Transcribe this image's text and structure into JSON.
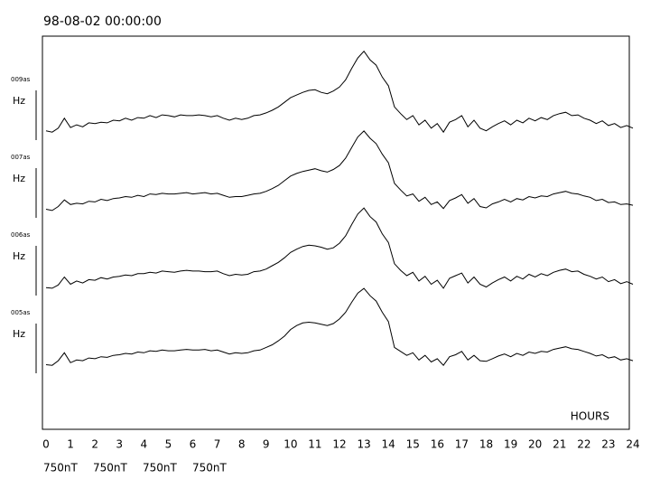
{
  "chart_data": {
    "type": "line",
    "title": "98-08-02 00:00:00",
    "x_label": "HOURS",
    "xlim": [
      0,
      24
    ],
    "xticks": [
      0,
      1,
      2,
      3,
      4,
      5,
      6,
      7,
      8,
      9,
      10,
      11,
      12,
      13,
      14,
      15,
      16,
      17,
      18,
      19,
      20,
      21,
      22,
      23,
      24
    ],
    "x": [
      0,
      0.25,
      0.5,
      0.75,
      1,
      1.25,
      1.5,
      1.75,
      2,
      2.25,
      2.5,
      2.75,
      3,
      3.25,
      3.5,
      3.75,
      4,
      4.25,
      4.5,
      4.75,
      5,
      5.25,
      5.5,
      5.75,
      6,
      6.25,
      6.5,
      6.75,
      7,
      7.25,
      7.5,
      7.75,
      8,
      8.25,
      8.5,
      8.75,
      9,
      9.25,
      9.5,
      9.75,
      10,
      10.25,
      10.5,
      10.75,
      11,
      11.25,
      11.5,
      11.75,
      12,
      12.25,
      12.5,
      12.75,
      13,
      13.25,
      13.5,
      13.75,
      14,
      14.25,
      14.5,
      14.75,
      15,
      15.25,
      15.5,
      15.75,
      16,
      16.25,
      16.5,
      16.75,
      17,
      17.25,
      17.5,
      17.75,
      18,
      18.25,
      18.5,
      18.75,
      19,
      19.25,
      19.5,
      19.75,
      20,
      20.25,
      20.5,
      20.75,
      21,
      21.25,
      21.5,
      21.75,
      22,
      22.25,
      22.5,
      22.75,
      23,
      23.25,
      23.5,
      23.75,
      24
    ],
    "series": [
      {
        "name": "009as",
        "component": "Hz",
        "color": "#000000",
        "scale": {
          "value": 750,
          "label": "750nT"
        },
        "values": [
          140,
          120,
          180,
          330,
          190,
          230,
          200,
          260,
          250,
          270,
          260,
          300,
          290,
          330,
          300,
          340,
          330,
          370,
          340,
          380,
          370,
          350,
          380,
          370,
          370,
          380,
          370,
          350,
          370,
          330,
          300,
          330,
          310,
          330,
          370,
          380,
          410,
          450,
          500,
          570,
          640,
          680,
          720,
          750,
          760,
          720,
          700,
          740,
          800,
          910,
          1080,
          1240,
          1340,
          1210,
          1130,
          950,
          820,
          500,
          400,
          310,
          370,
          230,
          300,
          180,
          250,
          120,
          270,
          310,
          370,
          200,
          300,
          180,
          140,
          200,
          250,
          290,
          230,
          300,
          260,
          330,
          290,
          340,
          310,
          370,
          400,
          420,
          370,
          380,
          330,
          300,
          250,
          290,
          220,
          250,
          190,
          220,
          180
        ]
      },
      {
        "name": "007as",
        "component": "Hz",
        "color": "#000000",
        "scale": {
          "value": 750,
          "label": "750nT"
        },
        "values": [
          130,
          110,
          170,
          270,
          200,
          220,
          210,
          250,
          240,
          280,
          260,
          290,
          300,
          320,
          310,
          340,
          320,
          360,
          350,
          370,
          360,
          360,
          370,
          380,
          360,
          370,
          380,
          360,
          370,
          340,
          310,
          320,
          320,
          340,
          360,
          370,
          400,
          440,
          490,
          560,
          630,
          670,
          700,
          720,
          740,
          710,
          690,
          730,
          790,
          900,
          1060,
          1220,
          1310,
          1200,
          1120,
          960,
          830,
          520,
          420,
          330,
          360,
          250,
          310,
          200,
          240,
          140,
          260,
          300,
          350,
          220,
          290,
          170,
          150,
          210,
          240,
          280,
          240,
          290,
          270,
          320,
          300,
          330,
          320,
          360,
          380,
          400,
          370,
          360,
          330,
          310,
          260,
          280,
          230,
          240,
          200,
          210,
          190
        ]
      },
      {
        "name": "006as",
        "component": "Hz",
        "color": "#000000",
        "scale": {
          "value": 750,
          "label": "750nT"
        },
        "values": [
          120,
          110,
          160,
          280,
          170,
          220,
          190,
          240,
          230,
          270,
          250,
          280,
          290,
          310,
          300,
          330,
          330,
          350,
          340,
          370,
          360,
          350,
          370,
          380,
          370,
          370,
          360,
          360,
          370,
          330,
          300,
          320,
          310,
          320,
          360,
          370,
          400,
          450,
          500,
          570,
          650,
          700,
          740,
          760,
          750,
          730,
          700,
          720,
          790,
          900,
          1070,
          1230,
          1320,
          1190,
          1110,
          930,
          800,
          480,
          380,
          300,
          350,
          220,
          290,
          170,
          230,
          110,
          260,
          300,
          340,
          190,
          280,
          170,
          130,
          190,
          240,
          280,
          220,
          290,
          250,
          320,
          280,
          330,
          300,
          350,
          380,
          400,
          360,
          370,
          320,
          290,
          250,
          280,
          210,
          240,
          180,
          210,
          170
        ]
      },
      {
        "name": "005as",
        "component": "Hz",
        "color": "#000000",
        "scale": {
          "value": 750,
          "label": "750nT"
        },
        "values": [
          130,
          120,
          190,
          310,
          160,
          200,
          190,
          230,
          220,
          250,
          240,
          270,
          280,
          300,
          290,
          320,
          310,
          340,
          330,
          350,
          340,
          340,
          350,
          360,
          350,
          350,
          360,
          340,
          350,
          320,
          290,
          310,
          300,
          310,
          340,
          350,
          390,
          430,
          490,
          560,
          660,
          720,
          760,
          770,
          760,
          740,
          720,
          750,
          820,
          920,
          1070,
          1210,
          1280,
          1170,
          1090,
          920,
          780,
          390,
          330,
          270,
          310,
          200,
          270,
          170,
          220,
          120,
          250,
          280,
          330,
          200,
          270,
          190,
          180,
          220,
          260,
          290,
          250,
          300,
          270,
          320,
          300,
          330,
          320,
          360,
          380,
          400,
          370,
          360,
          330,
          300,
          260,
          280,
          230,
          250,
          200,
          220,
          190
        ]
      }
    ]
  }
}
